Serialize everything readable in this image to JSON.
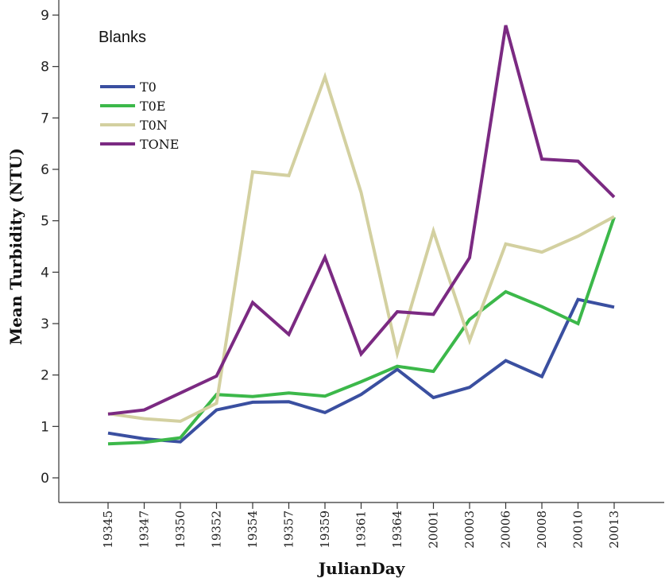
{
  "chart_data": {
    "type": "line",
    "title": "Blanks",
    "xlabel": "JulianDay",
    "ylabel": "Mean Turbidity (NTU)",
    "ylim": [
      0,
      9
    ],
    "yticks": [
      "0",
      "1",
      "2",
      "3",
      "4",
      "5",
      "6",
      "7",
      "8",
      "9"
    ],
    "categories": [
      "19345",
      "19347",
      "19350",
      "19352",
      "19354",
      "19357",
      "19359",
      "19361",
      "19364",
      "20001",
      "20003",
      "20006",
      "20008",
      "20010",
      "20013"
    ],
    "grid": false,
    "legend_position": "top-left",
    "series": [
      {
        "name": "T0",
        "color": "#3a4fa0",
        "values": [
          0.87,
          0.76,
          0.7,
          1.32,
          1.47,
          1.48,
          1.27,
          1.62,
          2.11,
          1.56,
          1.76,
          2.28,
          1.97,
          3.47,
          3.32
        ]
      },
      {
        "name": "T0E",
        "color": "#3cb84a",
        "values": [
          0.66,
          0.69,
          0.78,
          1.62,
          1.58,
          1.65,
          1.59,
          1.87,
          2.17,
          2.07,
          3.08,
          3.62,
          3.33,
          3.0,
          5.07
        ]
      },
      {
        "name": "T0N",
        "color": "#d3d0a0",
        "values": [
          1.25,
          1.15,
          1.1,
          1.45,
          5.95,
          5.88,
          7.8,
          5.55,
          2.42,
          4.8,
          2.67,
          4.55,
          4.39,
          4.7,
          5.08
        ]
      },
      {
        "name": "TONE",
        "color": "#7b2a82",
        "values": [
          1.24,
          1.32,
          1.65,
          1.98,
          3.41,
          2.79,
          4.29,
          2.41,
          3.23,
          3.18,
          4.28,
          8.8,
          6.2,
          6.16,
          5.46
        ]
      }
    ]
  }
}
